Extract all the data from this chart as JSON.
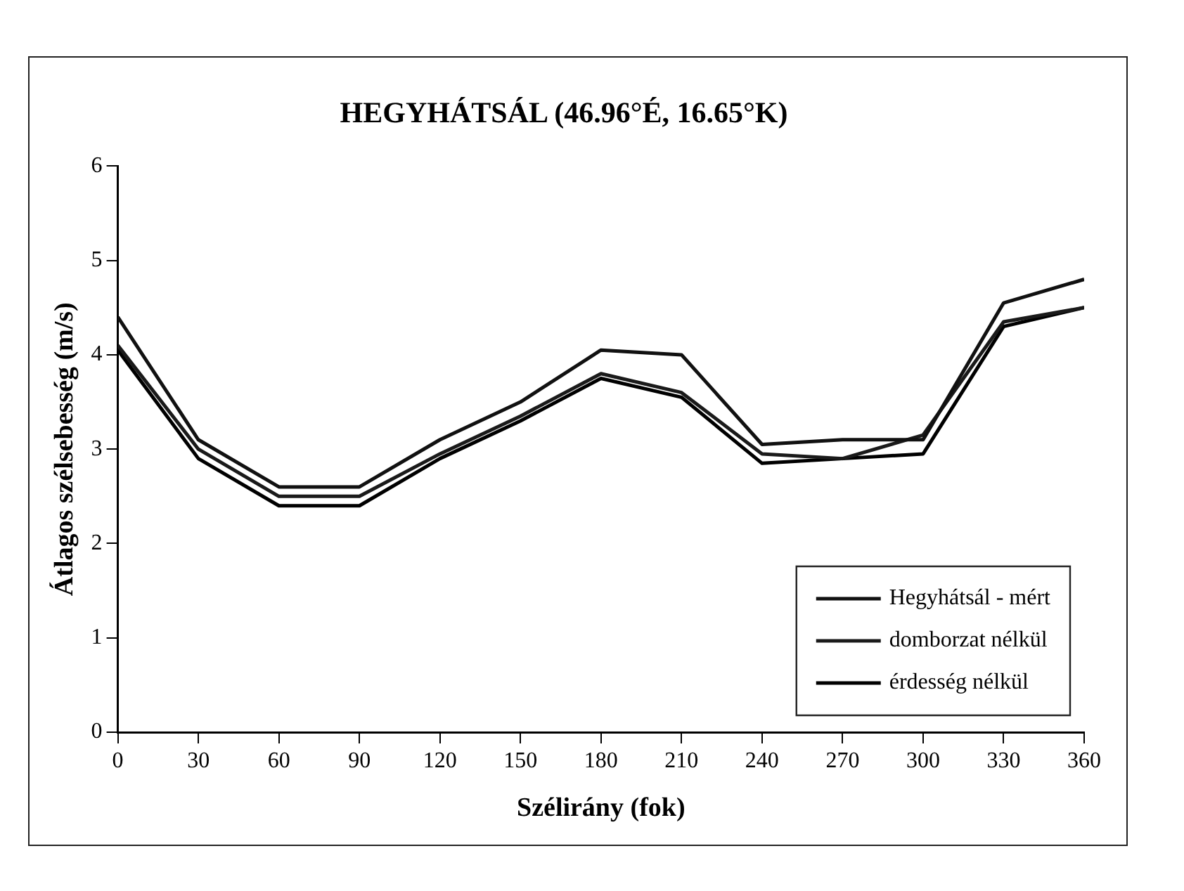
{
  "chart_data": {
    "type": "line",
    "title": "HEGYHÁTSÁL (46.96°É, 16.65°K)",
    "xlabel": "Szélirány (fok)",
    "ylabel": "Átlagos szélsebesség (m/s)",
    "x": [
      0,
      30,
      60,
      90,
      120,
      150,
      180,
      210,
      240,
      270,
      300,
      330,
      360
    ],
    "xlim": [
      0,
      360
    ],
    "xticks": [
      0,
      30,
      60,
      90,
      120,
      150,
      180,
      210,
      240,
      270,
      300,
      330,
      360
    ],
    "ylim": [
      0,
      6
    ],
    "yticks": [
      0,
      1,
      2,
      3,
      4,
      5,
      6
    ],
    "grid": false,
    "legend": "bottom right",
    "marker": "none",
    "line_style": "solid",
    "series": [
      {
        "name": "Hegyhátsál - mért",
        "color": "#111111",
        "values": [
          4.4,
          3.1,
          2.6,
          2.6,
          3.1,
          3.5,
          4.05,
          4.0,
          3.05,
          3.1,
          3.1,
          4.55,
          4.8
        ]
      },
      {
        "name": "domborzat nélkül",
        "color": "#1a1a1a",
        "values": [
          4.1,
          3.0,
          2.5,
          2.5,
          2.95,
          3.35,
          3.8,
          3.6,
          2.95,
          2.9,
          3.15,
          4.35,
          4.5
        ]
      },
      {
        "name": "érdesség nélkül",
        "color": "#000000",
        "values": [
          4.05,
          2.9,
          2.4,
          2.4,
          2.9,
          3.3,
          3.75,
          3.55,
          2.85,
          2.9,
          2.95,
          4.3,
          4.5
        ]
      }
    ]
  }
}
